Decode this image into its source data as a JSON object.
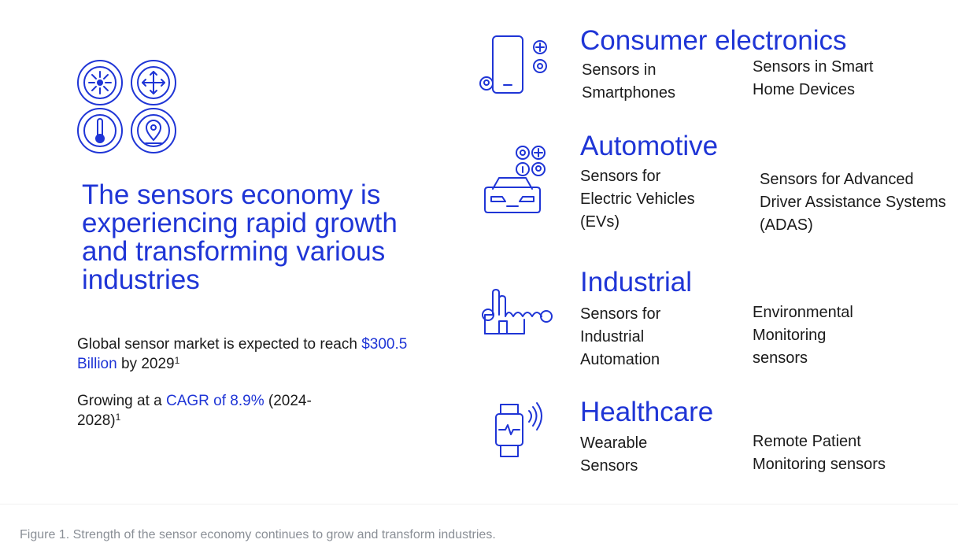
{
  "left_panel": {
    "headline": "The sensors economy is experiencing rapid growth and transforming various industries",
    "stat1": {
      "pre": "Global sensor market is expected to reach ",
      "highlight": "$300.5 Billion",
      "post": " by 2029",
      "sup": "1"
    },
    "stat2": {
      "pre": "Growing at a ",
      "highlight": "CAGR of 8.9%",
      "post": " (2024-2028)",
      "sup": "1"
    }
  },
  "categories": [
    {
      "title": "Consumer electronics",
      "icon": "smartphone-sensors-icon",
      "items": [
        "Sensors in Smartphones",
        "Sensors in Smart Home Devices"
      ]
    },
    {
      "title": "Automotive",
      "icon": "car-sensors-icon",
      "items": [
        "Sensors for Electric Vehicles (EVs)",
        "Sensors for Advanced Driver Assistance Systems (ADAS)"
      ]
    },
    {
      "title": "Industrial",
      "icon": "factory-sensors-icon",
      "items": [
        "Sensors for Industrial Automation",
        "Environmental Monitoring sensors"
      ]
    },
    {
      "title": "Healthcare",
      "icon": "smartwatch-icon",
      "items": [
        "Wearable Sensors",
        "Remote Patient Monitoring sensors"
      ]
    }
  ],
  "caption": "Figure 1. Strength of the sensor economy continues to grow and transform industries.",
  "colors": {
    "accent": "#1f35d6",
    "text": "#1b1b1b",
    "caption": "#8a8f96"
  }
}
